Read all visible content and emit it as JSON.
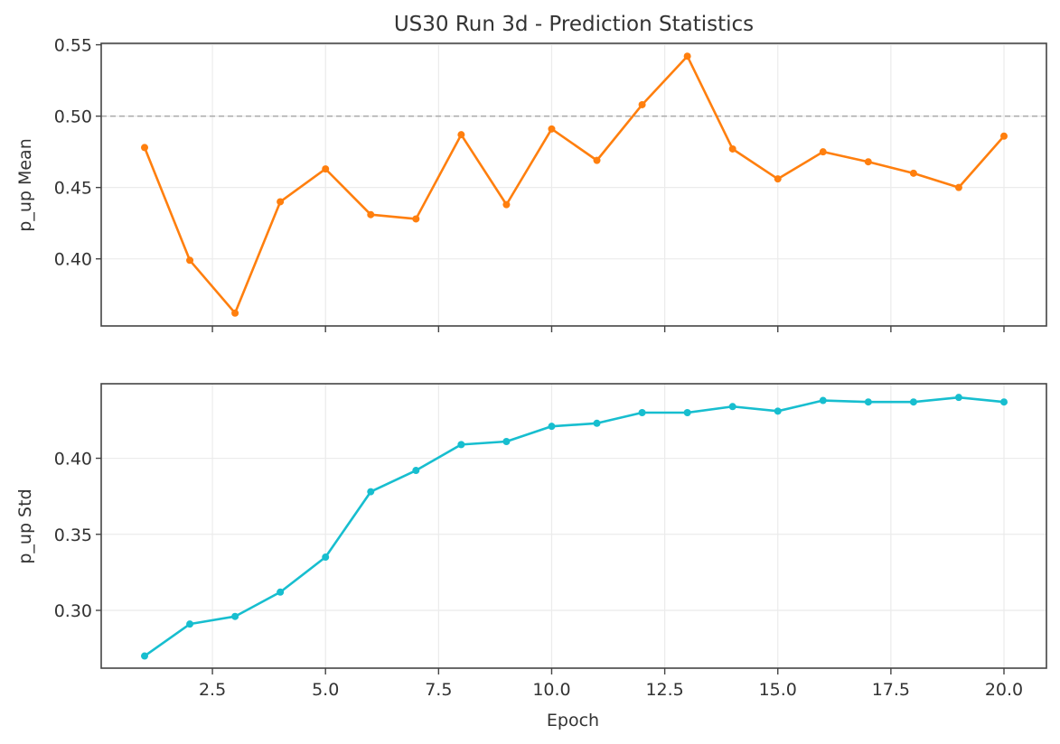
{
  "chart_data": [
    {
      "type": "line",
      "title": "US30 Run 3d - Prediction Statistics",
      "xlabel": "",
      "ylabel": "p_up Mean",
      "x": [
        1,
        2,
        3,
        4,
        5,
        6,
        7,
        8,
        9,
        10,
        11,
        12,
        13,
        14,
        15,
        16,
        17,
        18,
        19,
        20
      ],
      "series": [
        {
          "name": "p_up Mean",
          "color": "#ff7f0e",
          "values": [
            0.478,
            0.399,
            0.362,
            0.44,
            0.463,
            0.431,
            0.428,
            0.487,
            0.438,
            0.491,
            0.469,
            0.508,
            0.542,
            0.477,
            0.456,
            0.475,
            0.468,
            0.46,
            0.45,
            0.486
          ]
        }
      ],
      "reference_line": {
        "y": 0.5,
        "style": "dashed",
        "color": "#aaaaaa"
      },
      "ylim": [
        0.353,
        0.551
      ],
      "yticks": [
        "0.40",
        "0.45",
        "0.50",
        "0.55"
      ],
      "xticks": [
        "2.5",
        "5.0",
        "7.5",
        "10.0",
        "12.5",
        "15.0",
        "17.5",
        "20.0"
      ],
      "xtick_labels_visible": false,
      "grid": true
    },
    {
      "type": "line",
      "title": "",
      "xlabel": "Epoch",
      "ylabel": "p_up Std",
      "x": [
        1,
        2,
        3,
        4,
        5,
        6,
        7,
        8,
        9,
        10,
        11,
        12,
        13,
        14,
        15,
        16,
        17,
        18,
        19,
        20
      ],
      "series": [
        {
          "name": "p_up Std",
          "color": "#17becf",
          "values": [
            0.27,
            0.291,
            0.296,
            0.312,
            0.335,
            0.378,
            0.392,
            0.409,
            0.411,
            0.421,
            0.423,
            0.43,
            0.43,
            0.434,
            0.431,
            0.438,
            0.437,
            0.437,
            0.44,
            0.437
          ]
        }
      ],
      "ylim": [
        0.262,
        0.449
      ],
      "yticks": [
        "0.30",
        "0.35",
        "0.40"
      ],
      "xticks": [
        "2.5",
        "5.0",
        "7.5",
        "10.0",
        "12.5",
        "15.0",
        "17.5",
        "20.0"
      ],
      "grid": true
    }
  ],
  "labels": {
    "title": "US30 Run 3d - Prediction Statistics",
    "top_ylabel": "p_up Mean",
    "bottom_ylabel": "p_up Std",
    "xlabel": "Epoch"
  }
}
